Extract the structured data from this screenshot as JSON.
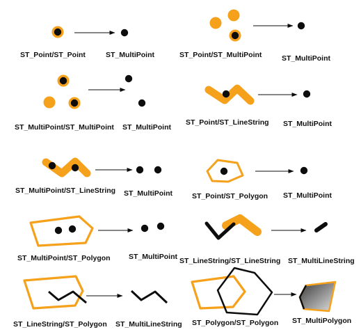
{
  "colors": {
    "orange": "#f5a11c",
    "black": "#0d0d0d",
    "white": "#ffffff"
  },
  "labels": {
    "p1_input": "ST_Point/ST_Point",
    "p1_output": "ST_MultiPoint",
    "p2_input": "ST_Point/ST_MultiPoint",
    "p2_output": "ST_MultiPoint",
    "p3_input": "ST_MultiPoint/ST_MultiPoint",
    "p3_output": "ST_MultiPoint",
    "p4_input": "ST_Point/ST_LineString",
    "p4_output": "ST_MultiPoint",
    "p5_input": "ST_MultiPoint/ST_LineString",
    "p5_output": "ST_MultiPoint",
    "p6_input": "ST_Point/ST_Polygon",
    "p6_output": "ST_MultiPoint",
    "p7_input": "ST_MultiPoint/ST_Polygon",
    "p7_output": "ST_MultiPoint",
    "p8_input": "ST_LineString/ST_LineString",
    "p8_output": "ST_MultiLineString",
    "p9_input": "ST_LineString/ST_Polygon",
    "p9_output": "ST_MultiLineString",
    "p10_input": "ST_Polygon/ST_Polygon",
    "p10_output": "ST_MultiPolygon"
  }
}
